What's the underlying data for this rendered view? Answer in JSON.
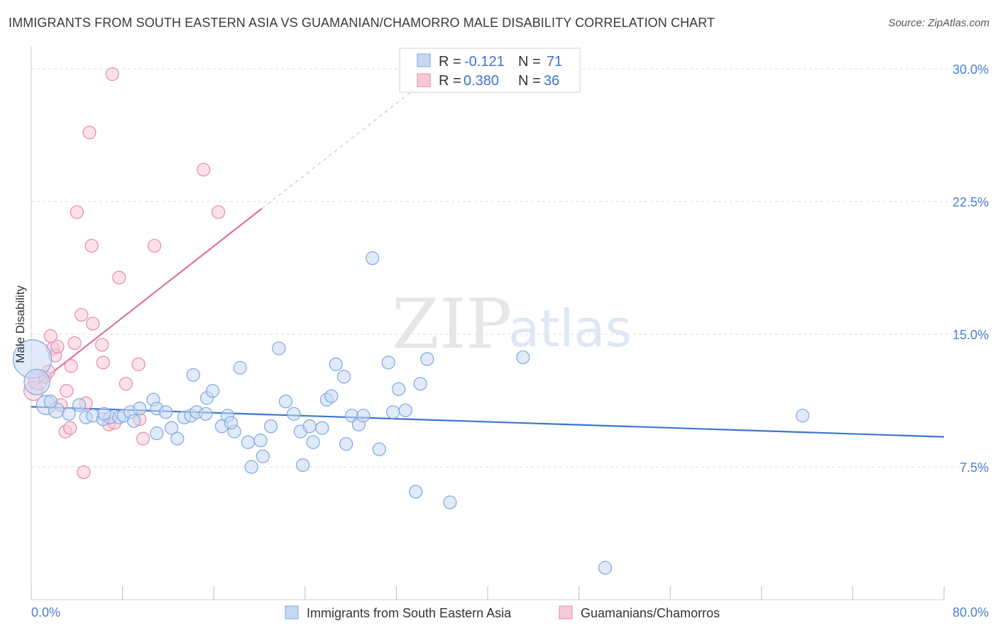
{
  "title": "IMMIGRANTS FROM SOUTH EASTERN ASIA VS GUAMANIAN/CHAMORRO MALE DISABILITY CORRELATION CHART",
  "source": "Source: ZipAtlas.com",
  "watermark": {
    "zip": "ZIP",
    "atlas": "atlas"
  },
  "colors": {
    "blue_fill": "#c6d8f2",
    "blue_stroke": "#7ea6e0",
    "blue_line": "#3a75d0",
    "pink_fill": "#f7c9d8",
    "pink_stroke": "#e88aa8",
    "pink_line": "#e0709a",
    "grid": "#dddddd",
    "axis_tick": "#4a7fd0"
  },
  "legend_box": {
    "rows": [
      {
        "r_label": "R =",
        "r_value": "-0.121",
        "n_label": "N =",
        "n_value": "71",
        "color": "blue"
      },
      {
        "r_label": "R =",
        "r_value": "0.380",
        "n_label": "N =",
        "n_value": "36",
        "color": "pink"
      }
    ]
  },
  "chart_data": {
    "type": "scatter",
    "title": "IMMIGRANTS FROM SOUTH EASTERN ASIA VS GUAMANIAN/CHAMORRO MALE DISABILITY CORRELATION CHART",
    "xlabel": "",
    "ylabel": "Male Disability",
    "xlim": [
      0,
      80
    ],
    "ylim": [
      0,
      30.5
    ],
    "x_tick_labels": [
      "0.0%",
      "80.0%"
    ],
    "y_ticks": [
      7.5,
      15.0,
      22.5,
      30.0
    ],
    "y_tick_labels": [
      "7.5%",
      "15.0%",
      "22.5%",
      "30.0%"
    ],
    "grid": true,
    "legend": [
      "Immigrants from South Eastern Asia",
      "Guamanians/Chamorros"
    ],
    "series": [
      {
        "name": "Immigrants from South Eastern Asia",
        "color": "blue",
        "trend": {
          "x": [
            0,
            80
          ],
          "y": [
            10.9,
            9.2
          ]
        },
        "points": [
          [
            0.1,
            13.6,
            3
          ],
          [
            0.5,
            12.3,
            2
          ],
          [
            1.3,
            11.0,
            1.5
          ],
          [
            2.2,
            10.7,
            1.2
          ],
          [
            3.3,
            10.5,
            1
          ],
          [
            1.7,
            11.2,
            1
          ],
          [
            4.2,
            11.0,
            1
          ],
          [
            4.8,
            10.3,
            1
          ],
          [
            5.4,
            10.4,
            1
          ],
          [
            6.3,
            10.2,
            1
          ],
          [
            6.9,
            10.3,
            1
          ],
          [
            6.4,
            10.5,
            1
          ],
          [
            7.7,
            10.3,
            1
          ],
          [
            8.1,
            10.4,
            1
          ],
          [
            8.7,
            10.6,
            1
          ],
          [
            9.0,
            10.1,
            1
          ],
          [
            9.5,
            10.8,
            1
          ],
          [
            10.7,
            11.3,
            1
          ],
          [
            11.0,
            10.8,
            1
          ],
          [
            11.8,
            10.6,
            1
          ],
          [
            12.3,
            9.7,
            1
          ],
          [
            11.0,
            9.4,
            1
          ],
          [
            12.8,
            9.1,
            1
          ],
          [
            13.4,
            10.3,
            1
          ],
          [
            14.0,
            10.4,
            1
          ],
          [
            14.5,
            10.6,
            1
          ],
          [
            15.3,
            10.5,
            1
          ],
          [
            14.2,
            12.7,
            1
          ],
          [
            15.4,
            11.4,
            1
          ],
          [
            15.9,
            11.8,
            1
          ],
          [
            16.7,
            9.8,
            1
          ],
          [
            17.2,
            10.4,
            1
          ],
          [
            17.8,
            9.5,
            1
          ],
          [
            17.5,
            10.0,
            1
          ],
          [
            18.3,
            13.1,
            1
          ],
          [
            19.0,
            8.9,
            1
          ],
          [
            20.1,
            9.0,
            1
          ],
          [
            20.3,
            8.1,
            1
          ],
          [
            19.3,
            7.5,
            1
          ],
          [
            21.0,
            9.8,
            1
          ],
          [
            21.7,
            14.2,
            1
          ],
          [
            22.3,
            11.2,
            1
          ],
          [
            23.0,
            10.5,
            1
          ],
          [
            23.6,
            9.5,
            1
          ],
          [
            23.8,
            7.6,
            1
          ],
          [
            24.4,
            9.8,
            1
          ],
          [
            24.7,
            8.9,
            1
          ],
          [
            25.5,
            9.7,
            1
          ],
          [
            25.9,
            11.3,
            1
          ],
          [
            26.3,
            11.5,
            1
          ],
          [
            26.7,
            13.3,
            1
          ],
          [
            27.4,
            12.6,
            1
          ],
          [
            27.6,
            8.8,
            1
          ],
          [
            28.1,
            10.4,
            1
          ],
          [
            28.7,
            9.9,
            1
          ],
          [
            29.1,
            10.4,
            1
          ],
          [
            29.9,
            19.3,
            1
          ],
          [
            30.5,
            8.5,
            1
          ],
          [
            31.3,
            13.4,
            1
          ],
          [
            31.7,
            10.6,
            1
          ],
          [
            32.2,
            11.9,
            1
          ],
          [
            32.8,
            10.7,
            1
          ],
          [
            33.7,
            6.1,
            1
          ],
          [
            34.1,
            12.2,
            1
          ],
          [
            34.7,
            13.6,
            1
          ],
          [
            36.7,
            5.5,
            1
          ],
          [
            43.1,
            13.7,
            1
          ],
          [
            50.3,
            1.8,
            1
          ],
          [
            67.6,
            10.4,
            1
          ]
        ]
      },
      {
        "name": "Guamanians/Chamorros",
        "color": "pink",
        "trend": {
          "x": [
            0,
            20.2
          ],
          "y": [
            11.9,
            22.1
          ],
          "dashed_to": [
            34.5,
            29.3
          ]
        },
        "points": [
          [
            0.2,
            11.8,
            1.5
          ],
          [
            0.6,
            12.4,
            1.5
          ],
          [
            1.2,
            12.6,
            1
          ],
          [
            1.5,
            12.9,
            1
          ],
          [
            1.7,
            14.9,
            1
          ],
          [
            1.9,
            14.2,
            1
          ],
          [
            2.1,
            13.8,
            1
          ],
          [
            2.3,
            14.3,
            1
          ],
          [
            2.6,
            11.0,
            1
          ],
          [
            3.1,
            11.8,
            1
          ],
          [
            3.0,
            9.5,
            1
          ],
          [
            3.4,
            9.7,
            1
          ],
          [
            3.5,
            13.2,
            1
          ],
          [
            3.8,
            14.5,
            1
          ],
          [
            4.0,
            21.9,
            1
          ],
          [
            4.4,
            16.1,
            1
          ],
          [
            4.6,
            7.2,
            1
          ],
          [
            4.8,
            11.1,
            1
          ],
          [
            5.1,
            26.4,
            1
          ],
          [
            5.3,
            20.0,
            1
          ],
          [
            5.4,
            15.6,
            1
          ],
          [
            6.2,
            14.4,
            1
          ],
          [
            6.3,
            13.4,
            1
          ],
          [
            6.8,
            9.9,
            1
          ],
          [
            7.1,
            29.7,
            1
          ],
          [
            7.3,
            10.0,
            1
          ],
          [
            7.7,
            18.2,
            1
          ],
          [
            8.3,
            12.2,
            1
          ],
          [
            9.4,
            13.3,
            1
          ],
          [
            9.5,
            10.2,
            1
          ],
          [
            9.8,
            9.1,
            1
          ],
          [
            10.8,
            20.0,
            1
          ],
          [
            15.1,
            24.3,
            1
          ],
          [
            16.4,
            21.9,
            1
          ]
        ]
      }
    ]
  }
}
